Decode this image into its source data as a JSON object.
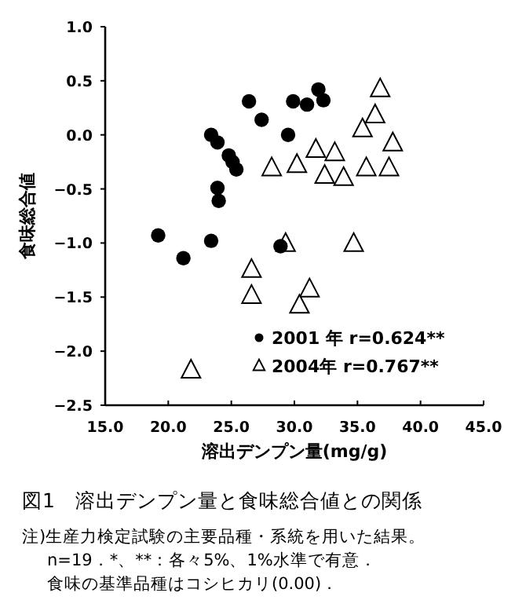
{
  "chart_data": {
    "type": "scatter",
    "title": "図1　溶出デンプン量と食味総合値との関係",
    "xlabel": "溶出デンプン量(mg/g)",
    "ylabel": "食味総合値",
    "annotations": [
      "注)生産力検定試験の主要品種・系統を用いた結果。",
      "n=19．*、**：各々5%、1%水準で有意．",
      "食味の基準品種はコシヒカリ(0.00)．"
    ],
    "xlim": [
      15,
      45
    ],
    "ylim": [
      -2.5,
      1
    ],
    "xticks": [
      {
        "value": 15,
        "label": "15.0"
      },
      {
        "value": 20,
        "label": "20.0"
      },
      {
        "value": 25,
        "label": "25.0"
      },
      {
        "value": 30,
        "label": "30.0"
      },
      {
        "value": 35,
        "label": "35.0"
      },
      {
        "value": 40,
        "label": "40.0"
      },
      {
        "value": 45,
        "label": "45.0"
      }
    ],
    "yticks": [
      {
        "value": 1,
        "label": "1.0"
      },
      {
        "value": 0.5,
        "label": "0.5"
      },
      {
        "value": 0,
        "label": "0.0"
      },
      {
        "value": -0.5,
        "label": "−0.5"
      },
      {
        "value": -1,
        "label": "−1.0"
      },
      {
        "value": -1.5,
        "label": "−1.5"
      },
      {
        "value": -2,
        "label": "−2.0"
      },
      {
        "value": -2.5,
        "label": "−2.5"
      }
    ],
    "legend": "bottom right",
    "series": [
      {
        "name": "2001 年 r=0.624**",
        "color": "#000000",
        "marker": "circle",
        "x": [
          19.2,
          23.4,
          26.4,
          27.4,
          23.4,
          null,
          23.9,
          24.8,
          25.1,
          25.4,
          23.9,
          24.0,
          21.2,
          28.9,
          29.5,
          29.9,
          31.0,
          31.9,
          32.3
        ],
        "values": [
          -0.93,
          -0.98,
          0.31,
          0.14,
          0.0,
          null,
          -0.07,
          -0.19,
          -0.25,
          -0.32,
          -0.49,
          -0.61,
          -1.14,
          -1.03,
          0.0,
          0.31,
          0.28,
          0.42,
          0.32
        ]
      },
      {
        "name": "2004年 r=0.767**",
        "color": "#000000",
        "marker": "triangle",
        "x": [
          36.8,
          36.4,
          35.4,
          37.8,
          31.7,
          33.2,
          28.2,
          30.2,
          32.4,
          33.9,
          35.7,
          37.5,
          29.3,
          34.7,
          26.6,
          26.6,
          31.2,
          30.4,
          21.8
        ],
        "values": [
          0.42,
          0.18,
          0.05,
          -0.08,
          -0.14,
          -0.17,
          -0.31,
          -0.28,
          -0.38,
          -0.4,
          -0.31,
          -0.31,
          -1.01,
          -1.01,
          -1.25,
          -1.49,
          -1.43,
          -1.58,
          -2.18
        ]
      }
    ]
  }
}
